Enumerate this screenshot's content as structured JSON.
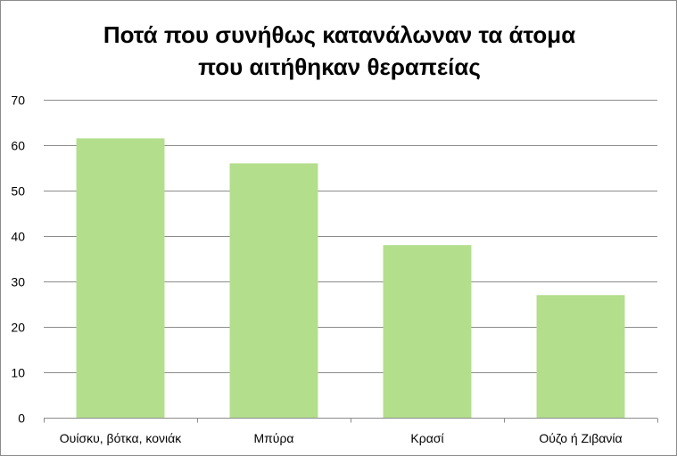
{
  "chart_data": {
    "type": "bar",
    "title_lines": [
      "Ποτά που συνήθως κατανάλωναν τα άτομα",
      "που αιτήθηκαν θεραπείας"
    ],
    "categories": [
      "Ουίσκυ, βότκα, κονιάκ",
      "Μπύρα",
      "Κρασί",
      "Ούζο ή Ζιβανία"
    ],
    "values": [
      61.5,
      56,
      38,
      27
    ],
    "ylim": [
      0,
      70
    ],
    "yticks": [
      "0",
      "10",
      "20",
      "30",
      "40",
      "50",
      "60",
      "70"
    ],
    "grid": true,
    "legend": "none",
    "colors": {
      "bar": "#b3de8c",
      "grid": "#8c8c8c",
      "axis": "#8c8c8c"
    }
  }
}
